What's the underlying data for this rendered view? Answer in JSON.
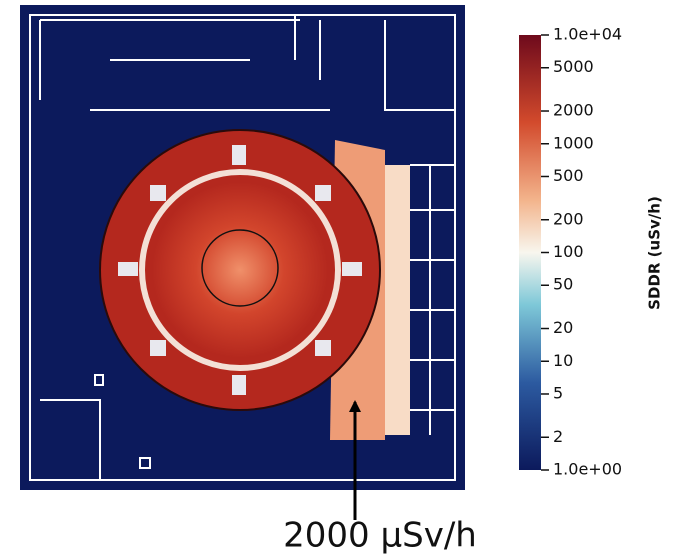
{
  "colorbar": {
    "label": "SDDR (uSv/h)",
    "range": [
      1,
      10000
    ],
    "log": true,
    "ticks": [
      {
        "value": 1,
        "label": "1.0e+00"
      },
      2,
      5,
      10,
      20,
      50,
      100,
      200,
      500,
      1000,
      2000,
      5000,
      {
        "value": 10000,
        "label": "1.0e+04"
      }
    ]
  },
  "annotation": "2000 µSv/h"
}
